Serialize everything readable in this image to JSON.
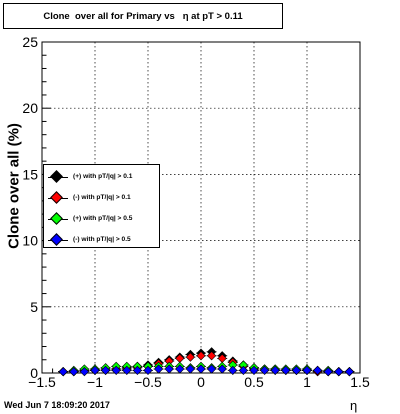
{
  "chart_data": {
    "type": "scatter",
    "title": "Clone  over all for Primary vs   η at pT > 0.11",
    "xlabel": "η",
    "ylabel": "Clone  over all (%)",
    "xlim": [
      -1.5,
      1.5
    ],
    "ylim": [
      0,
      25
    ],
    "x_ticks": [
      "−1.5",
      "−1",
      "−0.5",
      "0",
      "0.5",
      "1",
      "1.5"
    ],
    "x_tick_values": [
      -1.5,
      -1,
      -0.5,
      0,
      0.5,
      1,
      1.5
    ],
    "y_ticks": [
      "0",
      "5",
      "10",
      "15",
      "20",
      "25"
    ],
    "y_tick_values": [
      0,
      5,
      10,
      15,
      20,
      25
    ],
    "grid": true,
    "legend_position": "left-middle",
    "series": [
      {
        "name": "(+) with pT/|q| > 0.1",
        "color": "#000000",
        "x": [
          -1.3,
          -1.2,
          -1.1,
          -1.0,
          -0.9,
          -0.8,
          -0.7,
          -0.6,
          -0.5,
          -0.4,
          -0.3,
          -0.2,
          -0.1,
          0.0,
          0.1,
          0.2,
          0.3,
          0.4,
          0.5,
          0.6,
          0.7,
          0.8,
          0.9,
          1.0,
          1.1,
          1.2,
          1.3,
          1.4
        ],
        "values": [
          0.1,
          0.1,
          0.2,
          0.2,
          0.2,
          0.3,
          0.4,
          0.5,
          0.6,
          0.8,
          1.0,
          1.2,
          1.4,
          1.5,
          1.6,
          1.3,
          0.9,
          0.6,
          0.4,
          0.3,
          0.3,
          0.2,
          0.2,
          0.2,
          0.1,
          0.1,
          0.1,
          0.1
        ]
      },
      {
        "name": "(-) with pT/|q| > 0.1",
        "color": "#ff0000",
        "x": [
          -1.3,
          -1.2,
          -1.1,
          -1.0,
          -0.9,
          -0.8,
          -0.7,
          -0.6,
          -0.5,
          -0.4,
          -0.3,
          -0.2,
          -0.1,
          0.0,
          0.1,
          0.2,
          0.3,
          0.4,
          0.5,
          0.6,
          0.7,
          0.8,
          0.9,
          1.0,
          1.1,
          1.2,
          1.3,
          1.4
        ],
        "values": [
          0.1,
          0.1,
          0.2,
          0.2,
          0.3,
          0.3,
          0.3,
          0.4,
          0.5,
          0.7,
          0.9,
          1.1,
          1.2,
          1.3,
          1.3,
          1.1,
          0.8,
          0.5,
          0.3,
          0.3,
          0.2,
          0.2,
          0.2,
          0.2,
          0.1,
          0.1,
          0.1,
          0.1
        ]
      },
      {
        "name": "(+) with pT/|q| > 0.5",
        "color": "#00ff00",
        "x": [
          -1.3,
          -1.2,
          -1.1,
          -1.0,
          -0.9,
          -0.8,
          -0.7,
          -0.6,
          -0.5,
          -0.4,
          -0.3,
          -0.2,
          -0.1,
          0.0,
          0.1,
          0.2,
          0.3,
          0.4,
          0.5,
          0.6,
          0.7,
          0.8,
          0.9,
          1.0,
          1.1,
          1.2,
          1.3,
          1.4
        ],
        "values": [
          0.1,
          0.2,
          0.3,
          0.3,
          0.4,
          0.5,
          0.5,
          0.5,
          0.5,
          0.5,
          0.5,
          0.5,
          0.4,
          0.5,
          0.4,
          0.5,
          0.6,
          0.6,
          0.4,
          0.3,
          0.3,
          0.3,
          0.3,
          0.3,
          0.2,
          0.2,
          0.1,
          0.1
        ]
      },
      {
        "name": "(-) with pT/|q| > 0.5",
        "color": "#0000ff",
        "x": [
          -1.3,
          -1.2,
          -1.1,
          -1.0,
          -0.9,
          -0.8,
          -0.7,
          -0.6,
          -0.5,
          -0.4,
          -0.3,
          -0.2,
          -0.1,
          0.0,
          0.1,
          0.2,
          0.3,
          0.4,
          0.5,
          0.6,
          0.7,
          0.8,
          0.9,
          1.0,
          1.1,
          1.2,
          1.3,
          1.4
        ],
        "values": [
          0.1,
          0.1,
          0.1,
          0.2,
          0.2,
          0.2,
          0.2,
          0.2,
          0.2,
          0.3,
          0.3,
          0.3,
          0.3,
          0.3,
          0.3,
          0.3,
          0.2,
          0.2,
          0.2,
          0.2,
          0.2,
          0.2,
          0.2,
          0.2,
          0.2,
          0.1,
          0.1,
          0.1
        ]
      }
    ]
  },
  "footer_text": "Wed Jun  7 18:09:20 2017"
}
